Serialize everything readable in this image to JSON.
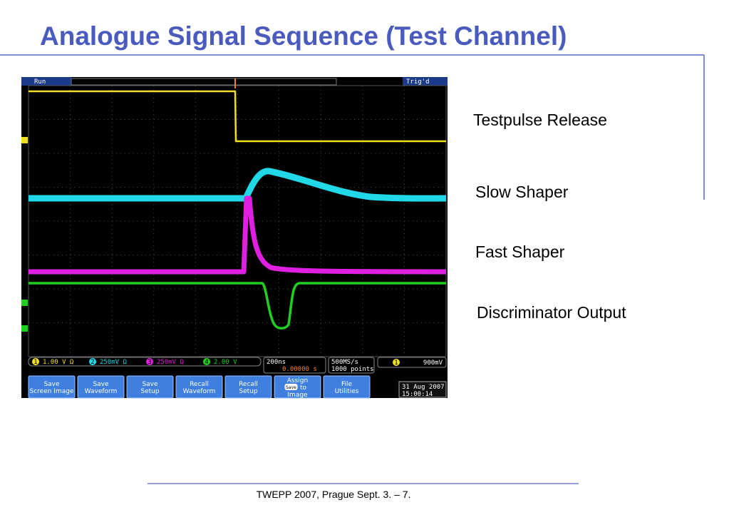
{
  "title": "Analogue Signal Sequence (Test Channel)",
  "labels": [
    "Testpulse Release",
    "Slow Shaper",
    "Fast Shaper",
    "Discriminator Output"
  ],
  "footer": "TWEPP 2007, Prague Sept. 3. – 7.",
  "scope": {
    "status": [
      "Run",
      "Trig'd"
    ],
    "channels": [
      {
        "number": "1",
        "scale": "1.00 V Ω"
      },
      {
        "number": "2",
        "scale": "250mV Ω"
      },
      {
        "number": "3",
        "scale": "250mV Ω"
      },
      {
        "number": "4",
        "scale": "2.00 V"
      }
    ],
    "timebase": "200ns",
    "position": "0.00000 s",
    "sample_rate": "500MS/s",
    "record_length": "1000 points",
    "trigger_channel": "1",
    "trigger_level": "900mV",
    "buttons": [
      [
        "Save",
        "Screen Image"
      ],
      [
        "Save",
        "Waveform"
      ],
      [
        "Save",
        "Setup"
      ],
      [
        "Recall",
        "Waveform"
      ],
      [
        "Recall",
        "Setup"
      ],
      [
        "Assign",
        "Save",
        "to",
        "Image"
      ],
      [
        "File",
        "Utilities"
      ]
    ],
    "date": "31 Aug 2007",
    "time": "15:00:14"
  }
}
